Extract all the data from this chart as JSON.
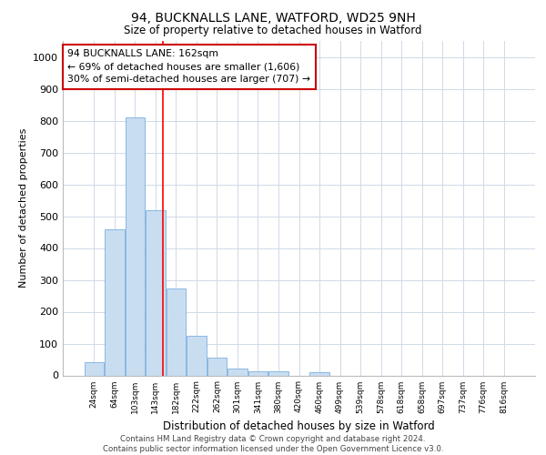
{
  "title1": "94, BUCKNALLS LANE, WATFORD, WD25 9NH",
  "title2": "Size of property relative to detached houses in Watford",
  "xlabel": "Distribution of detached houses by size in Watford",
  "ylabel": "Number of detached properties",
  "categories": [
    "24sqm",
    "64sqm",
    "103sqm",
    "143sqm",
    "182sqm",
    "222sqm",
    "262sqm",
    "301sqm",
    "341sqm",
    "380sqm",
    "420sqm",
    "460sqm",
    "499sqm",
    "539sqm",
    "578sqm",
    "618sqm",
    "658sqm",
    "697sqm",
    "737sqm",
    "776sqm",
    "816sqm"
  ],
  "values": [
    42,
    460,
    810,
    520,
    272,
    125,
    57,
    22,
    12,
    12,
    0,
    10,
    0,
    0,
    0,
    0,
    0,
    0,
    0,
    0,
    0
  ],
  "bar_color": "#c9ddf0",
  "bar_edge_color": "#7aafe0",
  "red_line_x": 3.38,
  "annotation_text": "94 BUCKNALLS LANE: 162sqm\n← 69% of detached houses are smaller (1,606)\n30% of semi-detached houses are larger (707) →",
  "annotation_box_color": "#ffffff",
  "annotation_box_edge": "#cc0000",
  "ylim": [
    0,
    1050
  ],
  "yticks": [
    0,
    100,
    200,
    300,
    400,
    500,
    600,
    700,
    800,
    900,
    1000
  ],
  "footer1": "Contains HM Land Registry data © Crown copyright and database right 2024.",
  "footer2": "Contains public sector information licensed under the Open Government Licence v3.0.",
  "background_color": "#ffffff",
  "grid_color": "#d0d9e8"
}
